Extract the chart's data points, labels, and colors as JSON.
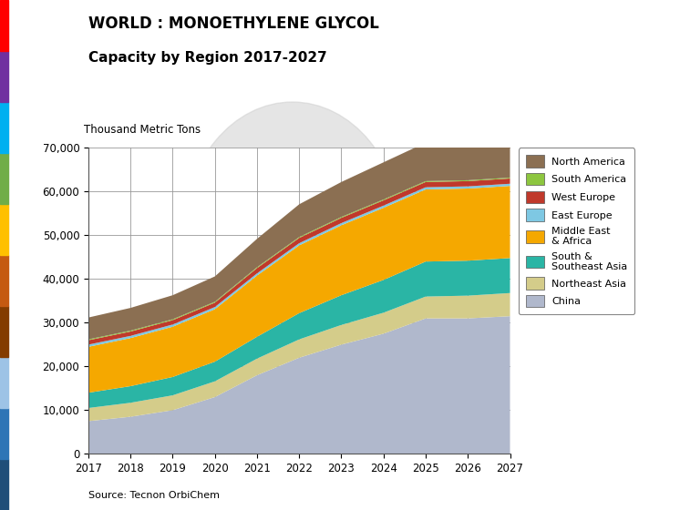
{
  "title_line1": "WORLD : MONOETHYLENE GLYCOL",
  "title_line2": "Capacity by Region 2017-2027",
  "ylabel": "Thousand Metric Tons",
  "source": "Source: Tecnon OrbiChem",
  "years": [
    2017,
    2018,
    2019,
    2020,
    2021,
    2022,
    2023,
    2024,
    2025,
    2026,
    2027
  ],
  "series": {
    "China": [
      7500,
      8500,
      10000,
      13000,
      18000,
      22000,
      25000,
      27500,
      31000,
      31000,
      31500
    ],
    "Northeast Asia": [
      3000,
      3200,
      3400,
      3600,
      3800,
      4200,
      4500,
      4800,
      5000,
      5200,
      5300
    ],
    "South & Southeast Asia": [
      3500,
      3800,
      4200,
      4500,
      5000,
      6000,
      6800,
      7500,
      8000,
      8000,
      8000
    ],
    "Middle East & Africa": [
      10500,
      11000,
      11500,
      12000,
      14000,
      15500,
      16000,
      16500,
      16500,
      16500,
      16500
    ],
    "East Europe": [
      500,
      500,
      500,
      500,
      500,
      500,
      500,
      500,
      500,
      500,
      500
    ],
    "West Europe": [
      1000,
      1000,
      1000,
      1000,
      1200,
      1200,
      1200,
      1200,
      1200,
      1200,
      1200
    ],
    "South America": [
      200,
      200,
      200,
      200,
      200,
      200,
      200,
      200,
      200,
      200,
      200
    ],
    "North America": [
      5000,
      5200,
      5500,
      5800,
      6500,
      7500,
      8000,
      8500,
      8800,
      8800,
      9000
    ]
  },
  "colors": {
    "China": "#b0b8cc",
    "Northeast Asia": "#d4cc8a",
    "South & Southeast Asia": "#2ab5a5",
    "Middle East & Africa": "#f5a800",
    "East Europe": "#7ec8e3",
    "West Europe": "#c0392b",
    "South America": "#8dc63f",
    "North America": "#8b6f52"
  },
  "sidebar_colors": [
    "#3b5998",
    "#4da6ff",
    "#9b59b6",
    "#c0392b",
    "#e67e22",
    "#27ae60",
    "#f1c40f",
    "#1abc9c",
    "#2980b9",
    "#8e44ad"
  ],
  "legend_labels": {
    "North America": "North America",
    "South America": "South America",
    "West Europe": "West Europe",
    "East Europe": "East Europe",
    "Middle East & Africa": "Middle East\n& Africa",
    "South & Southeast Asia": "South &\nSoutheast Asia",
    "Northeast Asia": "Northeast Asia",
    "China": "China"
  },
  "legend_order": [
    "North America",
    "South America",
    "West Europe",
    "East Europe",
    "Middle East & Africa",
    "South & Southeast Asia",
    "Northeast Asia",
    "China"
  ],
  "ylim": [
    0,
    70000
  ],
  "yticks": [
    0,
    10000,
    20000,
    30000,
    40000,
    50000,
    60000,
    70000
  ],
  "ytick_labels": [
    "0",
    "10,000",
    "20,000",
    "30,000",
    "40,000",
    "50,000",
    "60,000",
    "70,000"
  ],
  "background_color": "#ffffff",
  "grid_color": "#999999",
  "watermark_color": "#d0d0d0"
}
